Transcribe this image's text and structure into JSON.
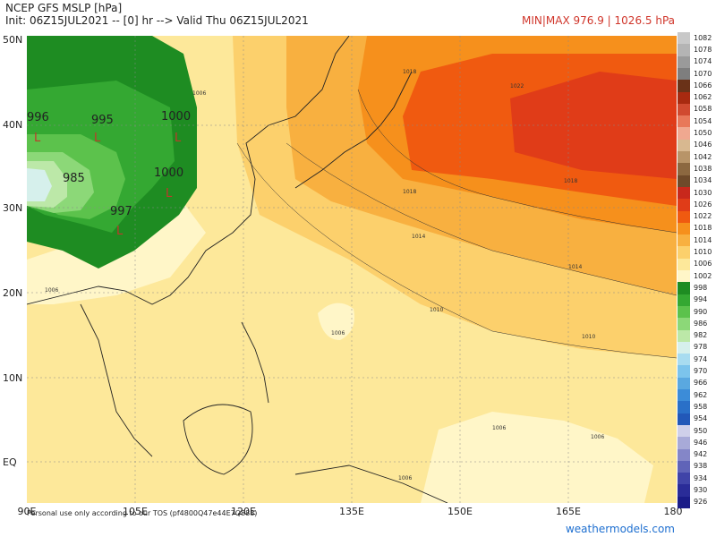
{
  "header": {
    "title": "NCEP GFS MSLP [hPa]",
    "init_line": "Init: 06Z15JUL2021 -- [0] hr --> Valid Thu 06Z15JUL2021",
    "minmax": "MIN|MAX 976.9 | 1026.5 hPa"
  },
  "axes": {
    "lat_labels": [
      "50N",
      "40N",
      "30N",
      "20N",
      "10N",
      "EQ"
    ],
    "lon_labels": [
      "90E",
      "105E",
      "120E",
      "135E",
      "150E",
      "165E",
      "180"
    ]
  },
  "map_labels": {
    "highs": [
      "1018",
      "1022",
      "1018",
      "1014",
      "1018",
      "1014",
      "1010",
      "1010",
      "1006",
      "1006",
      "1006",
      "1006",
      "1006",
      "1006"
    ],
    "lows": [
      {
        "value": "996"
      },
      {
        "value": "995"
      },
      {
        "value": "1000"
      },
      {
        "value": "985"
      },
      {
        "value": "1000"
      },
      {
        "value": "997"
      }
    ],
    "low_marker": "L"
  },
  "colorbar": {
    "levels": [
      "1082",
      "1078",
      "1074",
      "1070",
      "1066",
      "1062",
      "1058",
      "1054",
      "1050",
      "1046",
      "1042",
      "1038",
      "1034",
      "1030",
      "1026",
      "1022",
      "1018",
      "1014",
      "1010",
      "1006",
      "1002",
      "998",
      "994",
      "990",
      "986",
      "982",
      "978",
      "974",
      "970",
      "966",
      "962",
      "958",
      "954",
      "950",
      "946",
      "942",
      "938",
      "934",
      "930",
      "926"
    ],
    "colors": [
      "#c8c8c8",
      "#b4b4b4",
      "#9a9a9a",
      "#7e7e7e",
      "#6a3218",
      "#a82a10",
      "#d04a30",
      "#e8785a",
      "#f0a890",
      "#d8b890",
      "#b89468",
      "#8c6840",
      "#6e4a2a",
      "#c8281c",
      "#e03c18",
      "#f05a10",
      "#f6901c",
      "#f8b040",
      "#fcd06c",
      "#fde89a",
      "#fff6c8",
      "#1e8c22",
      "#34a832",
      "#5cc24c",
      "#8cd878",
      "#bce8a8",
      "#d6f0ec",
      "#a8dcf0",
      "#7cc4ec",
      "#5aa8e0",
      "#3c8cd8",
      "#2a70c8",
      "#2258b8",
      "#cfd0ea",
      "#a8aad8",
      "#8486c8",
      "#6064b8",
      "#4044a8",
      "#2a2c98",
      "#1a1c88"
    ]
  },
  "footer": {
    "disclaimer": "Personal use only according to our TOS (pf4800Q47e44E7Q888)",
    "site": "weathermodels.com"
  }
}
